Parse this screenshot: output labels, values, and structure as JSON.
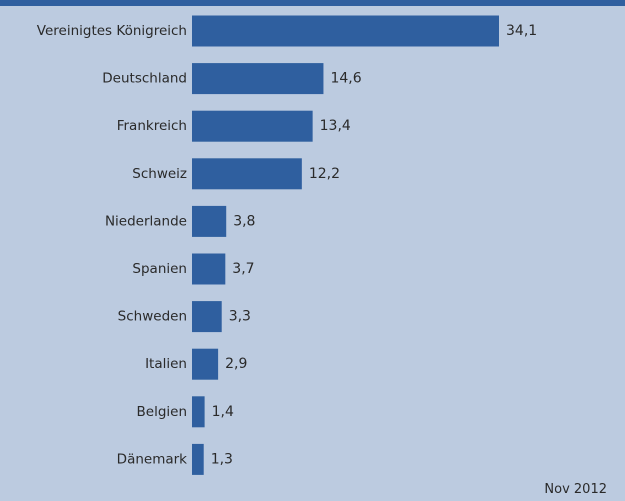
{
  "footer": {
    "date": "Nov 2012"
  },
  "colors": {
    "background": "#bccbe0",
    "bar": "#2f5f9f",
    "text": "#2a2a2a"
  },
  "chart_data": {
    "type": "bar",
    "orientation": "horizontal",
    "categories": [
      "Vereinigtes Königreich",
      "Deutschland",
      "Frankreich",
      "Schweiz",
      "Niederlande",
      "Spanien",
      "Schweden",
      "Italien",
      "Belgien",
      "Dänemark"
    ],
    "values": [
      34.1,
      14.6,
      13.4,
      12.2,
      3.8,
      3.7,
      3.3,
      2.9,
      1.4,
      1.3
    ],
    "value_labels": [
      "34,1",
      "14,6",
      "13,4",
      "12,2",
      "3,8",
      "3,7",
      "3,3",
      "2,9",
      "1,4",
      "1,3"
    ],
    "title": "",
    "xlabel": "",
    "ylabel": "",
    "xlim": [
      0,
      34.1
    ],
    "grid": false,
    "legend": "none"
  }
}
